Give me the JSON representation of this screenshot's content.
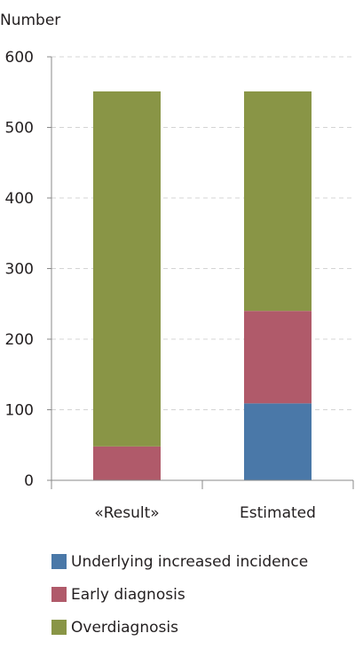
{
  "chart_data": {
    "type": "bar",
    "stacked": true,
    "ylabel": "Number",
    "xlabel": "",
    "ylim": [
      0,
      600
    ],
    "yticks": [
      0,
      100,
      200,
      300,
      400,
      500,
      600
    ],
    "grid": true,
    "categories": [
      "«Result»",
      "Estimated"
    ],
    "series": [
      {
        "name": "Underlying increased incidence",
        "color": "#4a78a8",
        "values": [
          0,
          109
        ]
      },
      {
        "name": "Early diagnosis",
        "color": "#b05a6a",
        "values": [
          48,
          131
        ]
      },
      {
        "name": "Overdiagnosis",
        "color": "#899546",
        "values": [
          503,
          311
        ]
      }
    ],
    "legend_position": "bottom"
  }
}
